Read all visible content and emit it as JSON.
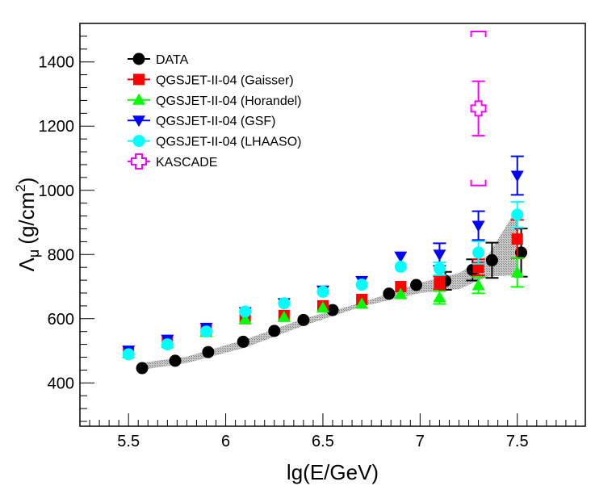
{
  "chart_data": {
    "type": "scatter",
    "title": "",
    "xlabel": "lg(E/GeV)",
    "ylabel_main": "Λ",
    "ylabel_sub": "μ",
    "ylabel_unit_open": "(g/cm",
    "ylabel_unit_sup": "2",
    "ylabel_unit_close": ")",
    "xlim": [
      5.25,
      7.85
    ],
    "ylim": [
      265,
      1520
    ],
    "xticks": [
      5.5,
      6,
      6.5,
      7,
      7.5
    ],
    "xtick_labels": [
      "5.5",
      "6",
      "6.5",
      "7",
      "7.5"
    ],
    "yticks": [
      400,
      600,
      800,
      1000,
      1200,
      1400
    ],
    "ytick_labels": [
      "400",
      "600",
      "800",
      "1000",
      "1200",
      "1400"
    ],
    "legend_position": "top-left",
    "band": {
      "upper": [
        [
          5.56,
          462
        ],
        [
          5.8,
          482
        ],
        [
          6.1,
          535
        ],
        [
          6.4,
          600
        ],
        [
          6.7,
          650
        ],
        [
          7.0,
          712
        ],
        [
          7.2,
          742
        ],
        [
          7.35,
          798
        ],
        [
          7.5,
          945
        ]
      ],
      "lower": [
        [
          7.5,
          735
        ],
        [
          7.35,
          732
        ],
        [
          7.2,
          692
        ],
        [
          7.0,
          680
        ],
        [
          6.7,
          638
        ],
        [
          6.4,
          578
        ],
        [
          6.1,
          510
        ],
        [
          5.8,
          462
        ],
        [
          5.56,
          440
        ]
      ]
    },
    "series": [
      {
        "name": "DATA",
        "marker": "circle",
        "color": "#000000",
        "points": [
          {
            "x": 5.57,
            "y": 446
          },
          {
            "x": 5.74,
            "y": 469
          },
          {
            "x": 5.91,
            "y": 496
          },
          {
            "x": 6.09,
            "y": 528
          },
          {
            "x": 6.25,
            "y": 562
          },
          {
            "x": 6.4,
            "y": 596
          },
          {
            "x": 6.55,
            "y": 627
          },
          {
            "x": 6.84,
            "y": 678
          },
          {
            "x": 6.98,
            "y": 705
          },
          {
            "x": 7.13,
            "y": 718,
            "err": 28
          },
          {
            "x": 7.27,
            "y": 752,
            "err": 33
          },
          {
            "x": 7.37,
            "y": 782,
            "err": 55
          },
          {
            "x": 7.52,
            "y": 806,
            "err": 75
          }
        ]
      },
      {
        "name": "QGSJET-II-04 (Gaisser)",
        "marker": "square",
        "color": "#ff0000",
        "points": [
          {
            "x": 5.5,
            "y": 496
          },
          {
            "x": 5.7,
            "y": 529
          },
          {
            "x": 5.9,
            "y": 564
          },
          {
            "x": 6.1,
            "y": 600
          },
          {
            "x": 6.3,
            "y": 610
          },
          {
            "x": 6.5,
            "y": 640
          },
          {
            "x": 6.7,
            "y": 660
          },
          {
            "x": 6.9,
            "y": 700
          },
          {
            "x": 7.1,
            "y": 712,
            "err": 20
          },
          {
            "x": 7.3,
            "y": 760,
            "err": 25
          },
          {
            "x": 7.5,
            "y": 848,
            "err": 60
          }
        ]
      },
      {
        "name": "QGSJET-II-04 (Horandel)",
        "marker": "triangle-up",
        "color": "#00ff00",
        "points": [
          {
            "x": 5.5,
            "y": 492
          },
          {
            "x": 5.7,
            "y": 524
          },
          {
            "x": 5.9,
            "y": 558
          },
          {
            "x": 6.1,
            "y": 598
          },
          {
            "x": 6.3,
            "y": 605
          },
          {
            "x": 6.5,
            "y": 634
          },
          {
            "x": 6.7,
            "y": 646
          },
          {
            "x": 6.9,
            "y": 676
          },
          {
            "x": 7.1,
            "y": 666,
            "err": 20
          },
          {
            "x": 7.3,
            "y": 704,
            "err": 25
          },
          {
            "x": 7.5,
            "y": 744,
            "err": 45
          }
        ]
      },
      {
        "name": "QGSJET-II-04 (GSF)",
        "marker": "triangle-down",
        "color": "#0000ff",
        "points": [
          {
            "x": 5.5,
            "y": 501
          },
          {
            "x": 5.7,
            "y": 535
          },
          {
            "x": 5.9,
            "y": 572
          },
          {
            "x": 6.1,
            "y": 621
          },
          {
            "x": 6.3,
            "y": 649
          },
          {
            "x": 6.5,
            "y": 688
          },
          {
            "x": 6.7,
            "y": 718
          },
          {
            "x": 6.9,
            "y": 794
          },
          {
            "x": 7.1,
            "y": 800,
            "err": 35
          },
          {
            "x": 7.3,
            "y": 890,
            "err": 45
          },
          {
            "x": 7.5,
            "y": 1046,
            "err": 60
          }
        ]
      },
      {
        "name": "QGSJET-II-04 (LHAASO)",
        "marker": "circle",
        "color": "#00ffff",
        "points": [
          {
            "x": 5.5,
            "y": 489
          },
          {
            "x": 5.7,
            "y": 520
          },
          {
            "x": 5.9,
            "y": 560
          },
          {
            "x": 6.1,
            "y": 622
          },
          {
            "x": 6.3,
            "y": 648
          },
          {
            "x": 6.5,
            "y": 684
          },
          {
            "x": 6.7,
            "y": 706
          },
          {
            "x": 6.9,
            "y": 762
          },
          {
            "x": 7.1,
            "y": 756,
            "err": 20
          },
          {
            "x": 7.3,
            "y": 806,
            "err": 35
          },
          {
            "x": 7.5,
            "y": 924,
            "err": 40
          }
        ]
      },
      {
        "name": "KASCADE",
        "marker": "open-cross",
        "color": "#ff00ff",
        "points": [
          {
            "x": 7.3,
            "y": 1255,
            "err": 85,
            "sys_low": 1015,
            "sys_high": 1495
          }
        ]
      }
    ]
  }
}
